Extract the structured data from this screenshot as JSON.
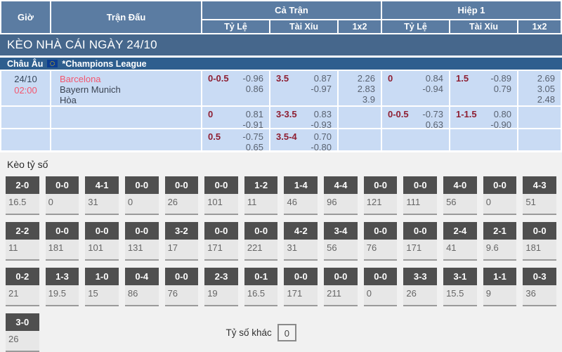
{
  "table_header": {
    "time": "Giờ",
    "match": "Trận Đấu",
    "full_time": "Cả Trận",
    "first_half": "Hiệp 1",
    "handicap": "Tỷ Lệ",
    "over_under": "Tài Xỉu",
    "one_x_two": "1x2"
  },
  "section_title": "KÈO NHÀ CÁI NGÀY 24/10",
  "league_bar": {
    "region": "Châu Âu",
    "flag_icon": "eu-flag",
    "league": "*Champions League"
  },
  "match": {
    "date": "24/10",
    "time": "02:00",
    "home": "Barcelona",
    "away": "Bayern Munich",
    "draw": "Hòa"
  },
  "odds_rows": [
    {
      "ft_hdp": {
        "line": "0-0.5",
        "top": "-0.96",
        "bot": "0.86"
      },
      "ft_ou": {
        "line": "3.5",
        "top": "0.87",
        "bot": "-0.97"
      },
      "ft_1x2": {
        "o1": "2.26",
        "o2": "2.83",
        "o3": "3.9"
      },
      "h1_hdp": {
        "line": "0",
        "top": "0.84",
        "bot": "-0.94"
      },
      "h1_ou": {
        "line": "1.5",
        "top": "-0.89",
        "bot": "0.79"
      },
      "h1_1x2": {
        "o1": "2.69",
        "o2": "3.05",
        "o3": "2.48"
      }
    },
    {
      "ft_hdp": {
        "line": "0",
        "top": "0.81",
        "bot": "-0.91"
      },
      "ft_ou": {
        "line": "3-3.5",
        "top": "0.83",
        "bot": "-0.93"
      },
      "h1_hdp": {
        "line": "0-0.5",
        "top": "-0.73",
        "bot": "0.63"
      },
      "h1_ou": {
        "line": "1-1.5",
        "top": "0.80",
        "bot": "-0.90"
      }
    },
    {
      "ft_hdp": {
        "line": "0.5",
        "top": "-0.75",
        "bot": "0.65"
      },
      "ft_ou": {
        "line": "3.5-4",
        "top": "0.70",
        "bot": "-0.80"
      }
    }
  ],
  "score_section": {
    "title": "Kèo tỷ số",
    "rows": [
      [
        {
          "score": "2-0",
          "value": "16.5"
        },
        {
          "score": "0-0",
          "value": "0"
        },
        {
          "score": "4-1",
          "value": "31"
        },
        {
          "score": "0-0",
          "value": "0"
        },
        {
          "score": "0-0",
          "value": "26"
        },
        {
          "score": "0-0",
          "value": "101"
        },
        {
          "score": "1-2",
          "value": "11"
        },
        {
          "score": "1-4",
          "value": "46"
        },
        {
          "score": "4-4",
          "value": "96"
        },
        {
          "score": "0-0",
          "value": "121"
        },
        {
          "score": "0-0",
          "value": "111"
        },
        {
          "score": "4-0",
          "value": "56"
        },
        {
          "score": "0-0",
          "value": "0"
        },
        {
          "score": "4-3",
          "value": "51"
        }
      ],
      [
        {
          "score": "2-2",
          "value": "11"
        },
        {
          "score": "0-0",
          "value": "181"
        },
        {
          "score": "0-0",
          "value": "101"
        },
        {
          "score": "0-0",
          "value": "131"
        },
        {
          "score": "3-2",
          "value": "17"
        },
        {
          "score": "0-0",
          "value": "171"
        },
        {
          "score": "0-0",
          "value": "221"
        },
        {
          "score": "4-2",
          "value": "31"
        },
        {
          "score": "3-4",
          "value": "56"
        },
        {
          "score": "0-0",
          "value": "76"
        },
        {
          "score": "0-0",
          "value": "171"
        },
        {
          "score": "2-4",
          "value": "41"
        },
        {
          "score": "2-1",
          "value": "9.6"
        },
        {
          "score": "0-0",
          "value": "181"
        }
      ],
      [
        {
          "score": "0-2",
          "value": "21"
        },
        {
          "score": "1-3",
          "value": "19.5"
        },
        {
          "score": "1-0",
          "value": "15"
        },
        {
          "score": "0-4",
          "value": "86"
        },
        {
          "score": "0-0",
          "value": "76"
        },
        {
          "score": "2-3",
          "value": "19"
        },
        {
          "score": "0-1",
          "value": "16.5"
        },
        {
          "score": "0-0",
          "value": "171"
        },
        {
          "score": "0-0",
          "value": "211"
        },
        {
          "score": "0-0",
          "value": "0"
        },
        {
          "score": "3-3",
          "value": "26"
        },
        {
          "score": "3-1",
          "value": "15.5"
        },
        {
          "score": "1-1",
          "value": "9"
        },
        {
          "score": "0-3",
          "value": "36"
        }
      ]
    ],
    "last_row": {
      "score": "3-0",
      "value": "26"
    },
    "other_label": "Tỷ số khác",
    "other_value": "0"
  },
  "colors": {
    "header_blue": "#5b7ca2",
    "title_blue": "#46678c",
    "league_blue": "#2e5e8e",
    "row_blue": "#c9dbf4",
    "accent_red": "#f4566e",
    "maroon_line": "#8e1e31",
    "score_box_gray": "#4f4f4f"
  }
}
